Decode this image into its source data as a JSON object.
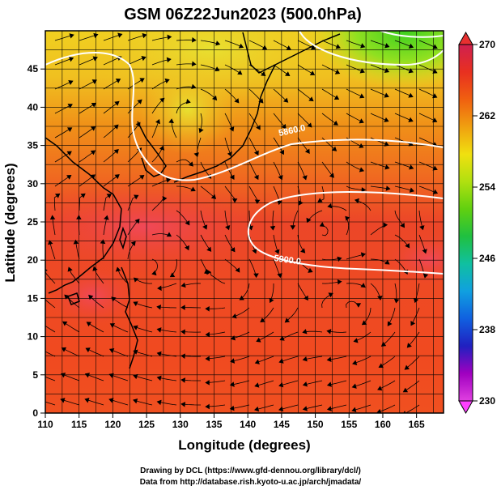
{
  "title": "GSM 06Z22Jun2023 (500.0hPa)",
  "x_axis": {
    "label": "Longitude (degrees)",
    "range": [
      110,
      169
    ],
    "ticks": [
      "110",
      "115",
      "120",
      "125",
      "130",
      "135",
      "140",
      "145",
      "150",
      "155",
      "160",
      "165"
    ],
    "tick_values": [
      110,
      115,
      120,
      125,
      130,
      135,
      140,
      145,
      150,
      155,
      160,
      165
    ]
  },
  "y_axis": {
    "label": "Latitude  (degrees)",
    "range": [
      0,
      50
    ],
    "ticks": [
      "0",
      "5",
      "10",
      "15",
      "20",
      "25",
      "30",
      "35",
      "40",
      "45"
    ],
    "tick_values": [
      0,
      5,
      10,
      15,
      20,
      25,
      30,
      35,
      40,
      45
    ]
  },
  "colorbar": {
    "range": [
      230,
      270
    ],
    "labels": [
      "270",
      "262",
      "254",
      "246",
      "238",
      "230"
    ],
    "label_values": [
      270,
      262,
      254,
      246,
      238,
      230
    ],
    "colors": [
      "#e040e0",
      "#a000c0",
      "#2020c0",
      "#1060e0",
      "#10a0e0",
      "#10c0a0",
      "#20c040",
      "#60d010",
      "#b0e010",
      "#f0e010",
      "#f0a010",
      "#f06010",
      "#e83020",
      "#d02050"
    ]
  },
  "contours": [
    {
      "label": "5860.0",
      "color": "#ffffff"
    },
    {
      "label": "5900.0",
      "color": "#ffffff"
    }
  ],
  "credits": {
    "line1": "Drawing by DCL (https://www.gfd-dennou.org/library/dcl/)",
    "line2": "Data from http://database.rish.kyoto-u.ac.jp/arch/jmadata/"
  }
}
